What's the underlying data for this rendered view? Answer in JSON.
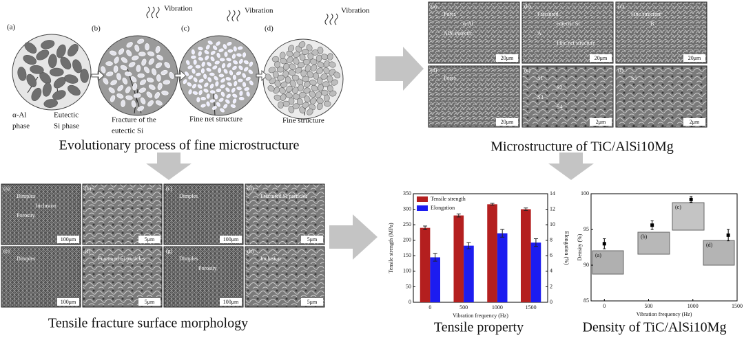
{
  "schematic": {
    "labels": [
      "(a)",
      "(b)",
      "(c)",
      "(d)"
    ],
    "vibration": [
      "Vibration",
      "Vibration",
      "Vibration"
    ],
    "annotations": [
      "α-Al",
      "phase",
      "Eutectic",
      "Si phase",
      "Fracture of the",
      "eutectic Si",
      "Fine net structure",
      "Fine structure"
    ],
    "caption": "Evolutionary process of fine microstructure"
  },
  "microstructure": {
    "panels": [
      {
        "label": "(a)",
        "scale": "20μm",
        "notes": [
          "Pores",
          "α-Al",
          "AlSi eutectic"
        ]
      },
      {
        "label": "(b)",
        "scale": "20μm",
        "notes": [
          "Fractured",
          "eutectic Si",
          "A",
          "Fine net structure"
        ]
      },
      {
        "label": "(c)",
        "scale": "20μm",
        "notes": [
          "Fine structure",
          "B"
        ]
      },
      {
        "label": "(d)",
        "scale": "20μm",
        "notes": [
          "Pores"
        ]
      },
      {
        "label": "(e)",
        "scale": "2μm",
        "notes": [
          "S1",
          "S2",
          "S3",
          "S4"
        ]
      },
      {
        "label": "(f)",
        "scale": "2μm",
        "notes": [
          "S5"
        ]
      }
    ],
    "caption": "Microstructure of TiC/AlSi10Mg"
  },
  "fracture": {
    "panels": [
      {
        "label": "(a)",
        "scale": "100μm",
        "notes": [
          "Dimples",
          "Inclusion",
          "Porosity"
        ]
      },
      {
        "label": "(b)",
        "scale": "5μm"
      },
      {
        "label": "(c)",
        "scale": "100μm",
        "notes": [
          "Dimples"
        ]
      },
      {
        "label": "(d)",
        "scale": "5μm",
        "notes": [
          "Fractured Si particles"
        ]
      },
      {
        "label": "(e)",
        "scale": "100μm",
        "notes": [
          "Dimples"
        ]
      },
      {
        "label": "(f)",
        "scale": "5μm",
        "notes": [
          "Fractured Si particles"
        ]
      },
      {
        "label": "(g)",
        "scale": "100μm",
        "notes": [
          "Dimples",
          "Porosity"
        ]
      },
      {
        "label": "(h)",
        "scale": "5μm",
        "notes": [
          "Inclusion"
        ]
      }
    ],
    "caption": "Tensile fracture surface morphology"
  },
  "chart_data": [
    {
      "type": "bar",
      "title": "Tensile property",
      "categories": [
        "0",
        "500",
        "1000",
        "1500"
      ],
      "x_label": "Vibration frequency (Hz)",
      "y_label": "Tensile strength (MPa)",
      "y2_label": "Elongation (%)",
      "series": [
        {
          "name": "Tensile strength",
          "color": "#b41f1f",
          "values": [
            240,
            280,
            316,
            300
          ],
          "errors": [
            6,
            5,
            3,
            4
          ]
        },
        {
          "name": "Elongation",
          "color": "#1c1cf0",
          "axis": "y2",
          "values": [
            5.8,
            7.3,
            8.9,
            7.7
          ],
          "errors": [
            0.5,
            0.4,
            0.5,
            0.5
          ]
        }
      ],
      "ylim": [
        0,
        350
      ],
      "yticks": [
        0,
        50,
        100,
        150,
        200,
        250,
        300,
        350
      ],
      "y2lim": [
        0,
        14
      ],
      "y2ticks": [
        0,
        2,
        4,
        6,
        8,
        10,
        12,
        14
      ],
      "legend": "upper-left"
    },
    {
      "type": "scatter",
      "title": "Density of TiC/AlSi10Mg",
      "x_label": "Vibration frequency (Hz)",
      "y_label": "Density (%)",
      "x": [
        0,
        540,
        980,
        1400
      ],
      "values": [
        93.0,
        95.6,
        99.2,
        94.2
      ],
      "errors": [
        0.7,
        0.6,
        0.4,
        0.8
      ],
      "color": "#000000",
      "xlim": [
        -150,
        1500
      ],
      "xticks": [
        0,
        500,
        1000,
        1500
      ],
      "ylim": [
        85,
        100
      ],
      "yticks": [
        85,
        90,
        95,
        100
      ],
      "insets": [
        "(a)",
        "(b)",
        "(c)",
        "(d)"
      ]
    }
  ]
}
